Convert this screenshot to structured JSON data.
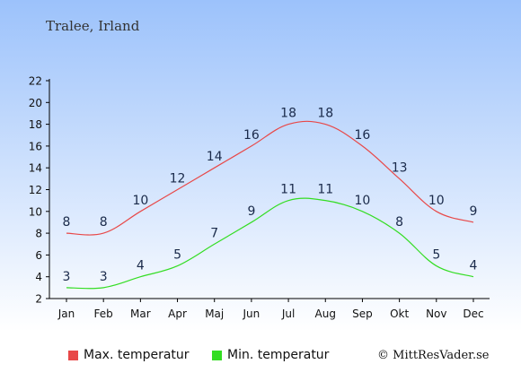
{
  "header": {
    "location": "Tralee, Irland"
  },
  "colors": {
    "max": "#e84848",
    "min": "#33dd22",
    "bg_top": "#9cc2fb",
    "bg_bottom": "#ffffff"
  },
  "chart_data": {
    "type": "line",
    "categories": [
      "Jan",
      "Feb",
      "Mar",
      "Apr",
      "Maj",
      "Jun",
      "Jul",
      "Aug",
      "Sep",
      "Okt",
      "Nov",
      "Dec"
    ],
    "series": [
      {
        "name": "Max. temperatur",
        "values": [
          8,
          8,
          10,
          12,
          14,
          16,
          18,
          18,
          16,
          13,
          10,
          9
        ]
      },
      {
        "name": "Min. temperatur",
        "values": [
          3,
          3,
          4,
          5,
          7,
          9,
          11,
          11,
          10,
          8,
          5,
          4
        ]
      }
    ],
    "yticks": [
      2,
      4,
      6,
      8,
      10,
      12,
      14,
      16,
      18,
      20,
      22
    ],
    "ylim": [
      2,
      22
    ],
    "grid": false,
    "legend": "bottom"
  },
  "legend": {
    "max_label": "Max. temperatur",
    "min_label": "Min. temperatur"
  },
  "footer": {
    "credit": "© MittResVader.se"
  }
}
